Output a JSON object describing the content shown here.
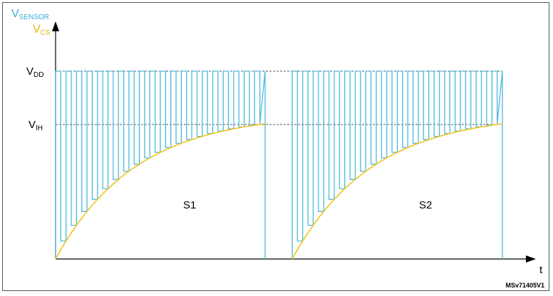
{
  "labels": {
    "v_sensor_main": "V",
    "v_sensor_sub": "SENSOR",
    "v_cs_main": "V",
    "v_cs_sub": "CS",
    "vdd_main": "V",
    "vdd_sub": "DD",
    "vih_main": "V",
    "vih_sub": "IH",
    "t_axis": "t",
    "phase_1": "S1",
    "phase_2": "S2",
    "ref_code": "MSv71405V1"
  },
  "colors": {
    "v_sensor": "#4db8e0",
    "v_cs": "#f2c41a",
    "axes": "#000000",
    "v_sensor_label": "#3aa9d8",
    "v_cs_label": "#e8b800"
  },
  "waveform": {
    "pulses_per_phase": 20,
    "vih_level_fraction_of_vdd": 0.72
  }
}
